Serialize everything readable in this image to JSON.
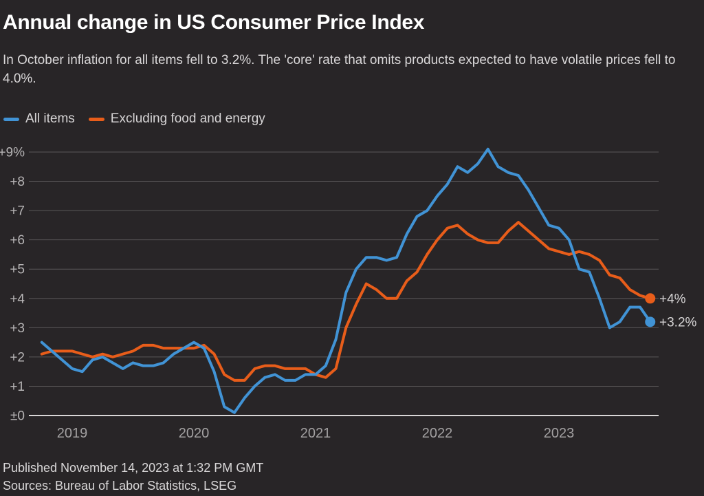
{
  "title": "Annual change in US Consumer Price Index",
  "subtitle": "In October inflation for all items fell to 3.2%. The 'core' rate that omits products expected to have volatile prices fell to 4.0%.",
  "footer": {
    "published": "Published November 14, 2023 at 1:32 PM GMT",
    "sources": "Sources: Bureau of Labor Statistics, LSEG"
  },
  "theme": {
    "background": "#282527",
    "grid_color": "#5a5758",
    "zero_line_color": "#d8d6d6"
  },
  "chart_data": {
    "type": "line",
    "title": "Annual change in US Consumer Price Index",
    "x_start": "2018-10",
    "x_end": "2023-10",
    "frequency": "monthly",
    "grid": true,
    "ylim": [
      0,
      9
    ],
    "legend_position": "top-left",
    "y_ticks": [
      {
        "value": 9,
        "label": "+9%"
      },
      {
        "value": 8,
        "label": "+8"
      },
      {
        "value": 7,
        "label": "+7"
      },
      {
        "value": 6,
        "label": "+6"
      },
      {
        "value": 5,
        "label": "+5"
      },
      {
        "value": 4,
        "label": "+4"
      },
      {
        "value": 3,
        "label": "+3"
      },
      {
        "value": 2,
        "label": "+2"
      },
      {
        "value": 1,
        "label": "+1"
      },
      {
        "value": 0,
        "label": "±0"
      }
    ],
    "x_ticks": [
      {
        "label": "2019",
        "month_index": 3
      },
      {
        "label": "2020",
        "month_index": 15
      },
      {
        "label": "2021",
        "month_index": 27
      },
      {
        "label": "2022",
        "month_index": 39
      },
      {
        "label": "2023",
        "month_index": 51
      }
    ],
    "series": [
      {
        "name": "All items",
        "color": "#4193d5",
        "end_label": "+3.2%",
        "values": [
          2.5,
          2.2,
          1.9,
          1.6,
          1.5,
          1.9,
          2.0,
          1.8,
          1.6,
          1.8,
          1.7,
          1.7,
          1.8,
          2.1,
          2.3,
          2.5,
          2.3,
          1.5,
          0.3,
          0.1,
          0.6,
          1.0,
          1.3,
          1.4,
          1.2,
          1.2,
          1.4,
          1.4,
          1.7,
          2.6,
          4.2,
          5.0,
          5.4,
          5.4,
          5.3,
          5.4,
          6.2,
          6.8,
          7.0,
          7.5,
          7.9,
          8.5,
          8.3,
          8.6,
          9.1,
          8.5,
          8.3,
          8.2,
          7.7,
          7.1,
          6.5,
          6.4,
          6.0,
          5.0,
          4.9,
          4.0,
          3.0,
          3.2,
          3.7,
          3.7,
          3.2
        ]
      },
      {
        "name": "Excluding food and energy",
        "color": "#e85d1a",
        "end_label": "+4%",
        "values": [
          2.1,
          2.2,
          2.2,
          2.2,
          2.1,
          2.0,
          2.1,
          2.0,
          2.1,
          2.2,
          2.4,
          2.4,
          2.3,
          2.3,
          2.3,
          2.3,
          2.4,
          2.1,
          1.4,
          1.2,
          1.2,
          1.6,
          1.7,
          1.7,
          1.6,
          1.6,
          1.6,
          1.4,
          1.3,
          1.6,
          3.0,
          3.8,
          4.5,
          4.3,
          4.0,
          4.0,
          4.6,
          4.9,
          5.5,
          6.0,
          6.4,
          6.5,
          6.2,
          6.0,
          5.9,
          5.9,
          6.3,
          6.6,
          6.3,
          6.0,
          5.7,
          5.6,
          5.5,
          5.6,
          5.5,
          5.3,
          4.8,
          4.7,
          4.3,
          4.1,
          4.0
        ]
      }
    ]
  }
}
